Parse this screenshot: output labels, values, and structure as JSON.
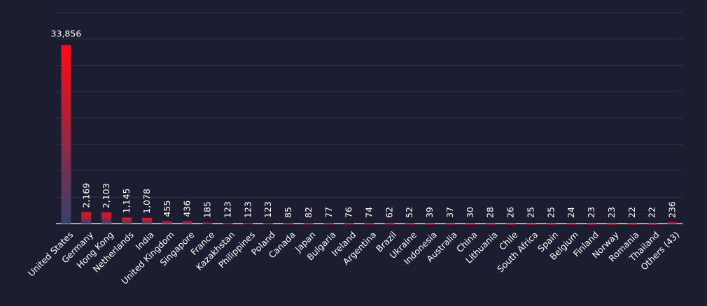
{
  "chart_data": {
    "type": "bar",
    "categories": [
      "United States",
      "Germany",
      "Hong Kong",
      "Netherlands",
      "India",
      "United Kingdom",
      "Singapore",
      "France",
      "Kazakhstan",
      "Philippines",
      "Poland",
      "Canada",
      "Japan",
      "Bulgaria",
      "Ireland",
      "Argentina",
      "Brazil",
      "Ukraine",
      "Indonesia",
      "Australia",
      "China",
      "Lithuania",
      "Chile",
      "South Africa",
      "Spain",
      "Belgium",
      "Finland",
      "Norway",
      "Romania",
      "Thailand",
      "Others (43)"
    ],
    "values": [
      33856,
      2169,
      2103,
      1145,
      1078,
      455,
      436,
      185,
      123,
      123,
      123,
      85,
      82,
      77,
      76,
      74,
      62,
      52,
      39,
      37,
      30,
      28,
      26,
      25,
      25,
      24,
      23,
      23,
      22,
      22,
      236
    ],
    "value_labels": [
      "33,856",
      "2,169",
      "2,103",
      "1,145",
      "1,078",
      "455",
      "436",
      "185",
      "123",
      "123",
      "123",
      "85",
      "82",
      "77",
      "76",
      "74",
      "62",
      "52",
      "39",
      "37",
      "30",
      "28",
      "26",
      "25",
      "25",
      "24",
      "23",
      "23",
      "22",
      "22",
      "236"
    ],
    "color": "#ff0a14",
    "color_bottom": "#34426e",
    "ylim": [
      0,
      40000
    ],
    "yticks": [
      0,
      5000,
      10000,
      15000,
      20000,
      25000,
      30000,
      35000,
      40000
    ],
    "grid": true
  }
}
